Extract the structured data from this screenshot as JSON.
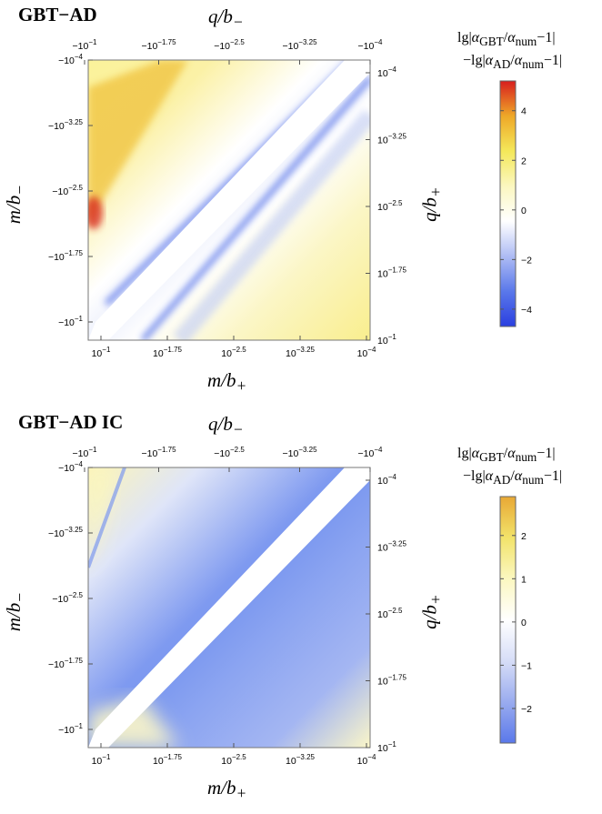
{
  "chart_data": [
    {
      "type": "heatmap",
      "title": "GBT−AD",
      "x_bottom_label": "m/b+",
      "x_top_label": "q/b−",
      "y_left_label": "m/b−",
      "y_right_label": "q/b+",
      "bottom_ticks": [
        {
          "base": "10",
          "exp": "−1"
        },
        {
          "base": "10",
          "exp": "−1.75"
        },
        {
          "base": "10",
          "exp": "−2.5"
        },
        {
          "base": "10",
          "exp": "−3.25"
        },
        {
          "base": "10",
          "exp": "−4"
        }
      ],
      "top_ticks": [
        {
          "base": "−10",
          "exp": "−1"
        },
        {
          "base": "−10",
          "exp": "−1.75"
        },
        {
          "base": "−10",
          "exp": "−2.5"
        },
        {
          "base": "−10",
          "exp": "−3.25"
        },
        {
          "base": "−10",
          "exp": "−4"
        }
      ],
      "left_ticks": [
        {
          "base": "−10",
          "exp": "−4"
        },
        {
          "base": "−10",
          "exp": "−3.25"
        },
        {
          "base": "−10",
          "exp": "−2.5"
        },
        {
          "base": "−10",
          "exp": "−1.75"
        },
        {
          "base": "−10",
          "exp": "−1"
        }
      ],
      "right_ticks": [
        {
          "base": "10",
          "exp": "−4"
        },
        {
          "base": "10",
          "exp": "−3.25"
        },
        {
          "base": "10",
          "exp": "−2.5"
        },
        {
          "base": "10",
          "exp": "−1.75"
        },
        {
          "base": "10",
          "exp": "−1"
        }
      ],
      "colorbar": {
        "title_line1": "lg|αGBT/αnum−1|",
        "title_line2": "−lg|αAD/αnum−1|",
        "range": [
          -4.7,
          5.2
        ],
        "ticks": [
          "4",
          "2",
          "0",
          "−2",
          "−4"
        ],
        "tick_values": [
          4,
          2,
          0,
          -2,
          -4
        ],
        "colors": [
          "#2a3fe0",
          "#5a78ea",
          "#aebcf4",
          "#ffffff",
          "#fbf7c0",
          "#f4e85a",
          "#eea828",
          "#d81e1e"
        ]
      }
    },
    {
      "type": "heatmap",
      "title": "GBT−AD IC",
      "x_bottom_label": "m/b+",
      "x_top_label": "q/b−",
      "y_left_label": "m/b−",
      "y_right_label": "q/b+",
      "bottom_ticks": [
        {
          "base": "10",
          "exp": "−1"
        },
        {
          "base": "10",
          "exp": "−1.75"
        },
        {
          "base": "10",
          "exp": "−2.5"
        },
        {
          "base": "10",
          "exp": "−3.25"
        },
        {
          "base": "10",
          "exp": "−4"
        }
      ],
      "top_ticks": [
        {
          "base": "−10",
          "exp": "−1"
        },
        {
          "base": "−10",
          "exp": "−1.75"
        },
        {
          "base": "−10",
          "exp": "−2.5"
        },
        {
          "base": "−10",
          "exp": "−3.25"
        },
        {
          "base": "−10",
          "exp": "−4"
        }
      ],
      "left_ticks": [
        {
          "base": "−10",
          "exp": "−4"
        },
        {
          "base": "−10",
          "exp": "−3.25"
        },
        {
          "base": "−10",
          "exp": "−2.5"
        },
        {
          "base": "−10",
          "exp": "−1.75"
        },
        {
          "base": "−10",
          "exp": "−1"
        }
      ],
      "right_ticks": [
        {
          "base": "10",
          "exp": "−4"
        },
        {
          "base": "10",
          "exp": "−3.25"
        },
        {
          "base": "10",
          "exp": "−2.5"
        },
        {
          "base": "10",
          "exp": "−1.75"
        },
        {
          "base": "10",
          "exp": "−1"
        }
      ],
      "colorbar": {
        "title_line1": "lg|αGBT/αnum−1|",
        "title_line2": "−lg|αAD/αnum−1|",
        "range": [
          -2.8,
          2.9
        ],
        "ticks": [
          "2",
          "1",
          "0",
          "−1",
          "−2"
        ],
        "tick_values": [
          2,
          1,
          0,
          -1,
          -2
        ],
        "colors": [
          "#5a78ea",
          "#9aacef",
          "#d6ddf7",
          "#ffffff",
          "#fbf7c0",
          "#f2e36a",
          "#e8a835"
        ]
      }
    }
  ]
}
